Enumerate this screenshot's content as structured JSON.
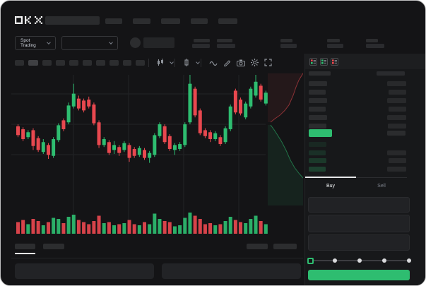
{
  "window": {
    "brand": "OKX"
  },
  "theme": {
    "app_bg": "#141416",
    "panel_bg": "#17181a",
    "toolbar_bg": "#1d1e20",
    "skeleton": "#2c2d2f",
    "skeleton_dim": "#242527",
    "skeleton_bright": "#3f4043",
    "green": "#2ebd70",
    "red": "#e8484f",
    "text": "#eef0f2",
    "text_dim": "#7d828c",
    "grid": "#222326",
    "divider": "#242528",
    "white_line": "#e6e7e9"
  },
  "header": {
    "search_placeholder_w": 77,
    "nav_item_widths": [
      24,
      25,
      27,
      24,
      27
    ],
    "market_selector_label": "Spot Trading",
    "user_balance_pair": {
      "label_w": 23,
      "value_w": 25
    },
    "market_stats": [
      {
        "label_w": 22,
        "value_w": 26
      },
      {
        "label_w": 17,
        "value_w": 23
      },
      {
        "label_w": 18,
        "value_w": 23
      },
      {
        "label_w": 17,
        "value_w": 26
      }
    ]
  },
  "chart_toolbar": {
    "timeframe_widths": [
      13,
      14,
      13,
      13,
      13,
      13,
      13,
      13,
      12,
      13
    ],
    "active_timeframe_index": 1
  },
  "chart_data": {
    "type": "candlestick",
    "note": "no numeric axis labels visible; values normalized 0-100",
    "ylim": [
      0,
      100
    ],
    "grid": {
      "h_lines": 3,
      "v_lines": 4,
      "visible": true
    },
    "candles": [
      [
        48,
        39,
        37,
        50
      ],
      [
        45,
        35,
        33,
        47
      ],
      [
        37,
        42,
        35,
        44
      ],
      [
        44,
        28,
        24,
        46
      ],
      [
        36,
        24,
        22,
        38
      ],
      [
        22,
        32,
        20,
        35
      ],
      [
        29,
        19,
        15,
        31
      ],
      [
        18,
        35,
        16,
        37
      ],
      [
        34,
        49,
        32,
        51
      ],
      [
        54,
        45,
        43,
        56
      ],
      [
        52,
        69,
        50,
        72
      ],
      [
        68,
        81,
        66,
        91
      ],
      [
        76,
        66,
        64,
        79
      ],
      [
        74,
        64,
        62,
        76
      ],
      [
        75,
        68,
        66,
        78
      ],
      [
        70,
        51,
        49,
        72
      ],
      [
        52,
        29,
        26,
        54
      ],
      [
        29,
        35,
        27,
        37
      ],
      [
        32,
        21,
        19,
        34
      ],
      [
        24,
        29,
        20,
        33
      ],
      [
        27,
        21,
        18,
        29
      ],
      [
        24,
        31,
        22,
        33
      ],
      [
        29,
        16,
        12,
        31
      ],
      [
        25,
        18,
        16,
        27
      ],
      [
        19,
        26,
        17,
        28
      ],
      [
        24,
        16,
        14,
        26
      ],
      [
        16,
        21,
        11,
        23
      ],
      [
        19,
        39,
        17,
        41
      ],
      [
        38,
        50,
        36,
        52
      ],
      [
        48,
        32,
        30,
        50
      ],
      [
        38,
        25,
        23,
        40
      ],
      [
        24,
        29,
        19,
        31
      ],
      [
        25,
        30,
        23,
        32
      ],
      [
        29,
        50,
        27,
        52
      ],
      [
        52,
        91,
        50,
        100
      ],
      [
        86,
        59,
        57,
        88
      ],
      [
        64,
        41,
        39,
        66
      ],
      [
        44,
        38,
        36,
        46
      ],
      [
        42,
        35,
        32,
        44
      ],
      [
        35,
        41,
        33,
        43
      ],
      [
        37,
        30,
        28,
        39
      ],
      [
        32,
        46,
        30,
        48
      ],
      [
        45,
        68,
        43,
        70
      ],
      [
        84,
        62,
        60,
        86
      ],
      [
        75,
        61,
        59,
        77
      ],
      [
        57,
        71,
        55,
        73
      ],
      [
        68,
        86,
        66,
        88
      ],
      [
        79,
        93,
        77,
        100
      ],
      [
        89,
        75,
        73,
        91
      ],
      [
        71,
        82,
        69,
        84
      ]
    ],
    "volume": [
      55,
      65,
      45,
      70,
      60,
      40,
      55,
      75,
      70,
      50,
      80,
      90,
      65,
      55,
      45,
      60,
      85,
      50,
      55,
      40,
      45,
      50,
      65,
      45,
      40,
      55,
      45,
      95,
      70,
      60,
      55,
      35,
      40,
      75,
      100,
      85,
      70,
      45,
      50,
      40,
      45,
      60,
      80,
      65,
      55,
      50,
      70,
      85,
      60,
      45
    ],
    "depth": {
      "asks_line": [
        [
          1.0,
          0.04
        ],
        [
          0.88,
          0.09
        ],
        [
          0.8,
          0.14
        ],
        [
          0.72,
          0.2
        ],
        [
          0.6,
          0.27
        ],
        [
          0.48,
          0.31
        ],
        [
          0.34,
          0.345
        ],
        [
          0.2,
          0.37
        ],
        [
          0.08,
          0.395
        ]
      ],
      "bids_line": [
        [
          0.08,
          0.415
        ],
        [
          0.18,
          0.45
        ],
        [
          0.28,
          0.49
        ],
        [
          0.4,
          0.54
        ],
        [
          0.52,
          0.6
        ],
        [
          0.64,
          0.67
        ],
        [
          0.76,
          0.725
        ],
        [
          0.88,
          0.765
        ],
        [
          1.0,
          0.8
        ]
      ]
    }
  },
  "orderbook": {
    "layout_icons": [
      "book-combined",
      "book-bids",
      "book-asks"
    ],
    "header": {
      "price_col_w": 31,
      "amount_col_w": 40
    },
    "asks": [
      {
        "price_w": 26,
        "amount_w": 27
      },
      {
        "price_w": 24,
        "amount_w": 25
      },
      {
        "price_w": 26,
        "amount_w": 27
      },
      {
        "price_w": 24,
        "amount_w": 25
      },
      {
        "price_w": 26,
        "amount_w": 27
      },
      {
        "price_w": 25,
        "amount_w": 26
      }
    ],
    "last_price": {
      "price_w": 33,
      "amount_w": 26
    },
    "bids": [
      {
        "price_w": 25,
        "amount_w": 0
      },
      {
        "price_w": 24,
        "amount_w": 27
      },
      {
        "price_w": 25,
        "amount_w": 25
      },
      {
        "price_w": 24,
        "amount_w": 27
      }
    ]
  },
  "trade_form": {
    "tabs": [
      {
        "label": "Buy",
        "active": true
      },
      {
        "label": "Sell",
        "active": false
      }
    ],
    "input_row_heights": [
      22,
      25,
      23
    ],
    "slider": {
      "stops": 5,
      "selected_index": 0
    }
  },
  "bottom_bar": {
    "tabs": [
      {
        "w": 29,
        "active": true
      },
      {
        "w": 30,
        "active": false
      }
    ],
    "right_item_widths": [
      30,
      33
    ],
    "panel_count": 2
  }
}
